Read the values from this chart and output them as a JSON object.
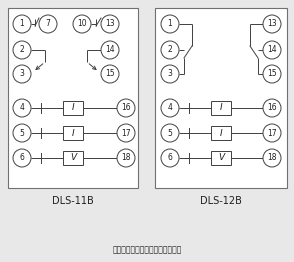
{
  "bg_color": "#e8e8e8",
  "line_color": "#404040",
  "text_color": "#202020",
  "title1": "DLS-11B",
  "title2": "DLS-12B",
  "note": "注：触点处在跳闸位置时的接线图",
  "font_size_num": 5.5,
  "font_size_title": 7,
  "font_size_note": 5.5,
  "font_size_box": 6.5
}
